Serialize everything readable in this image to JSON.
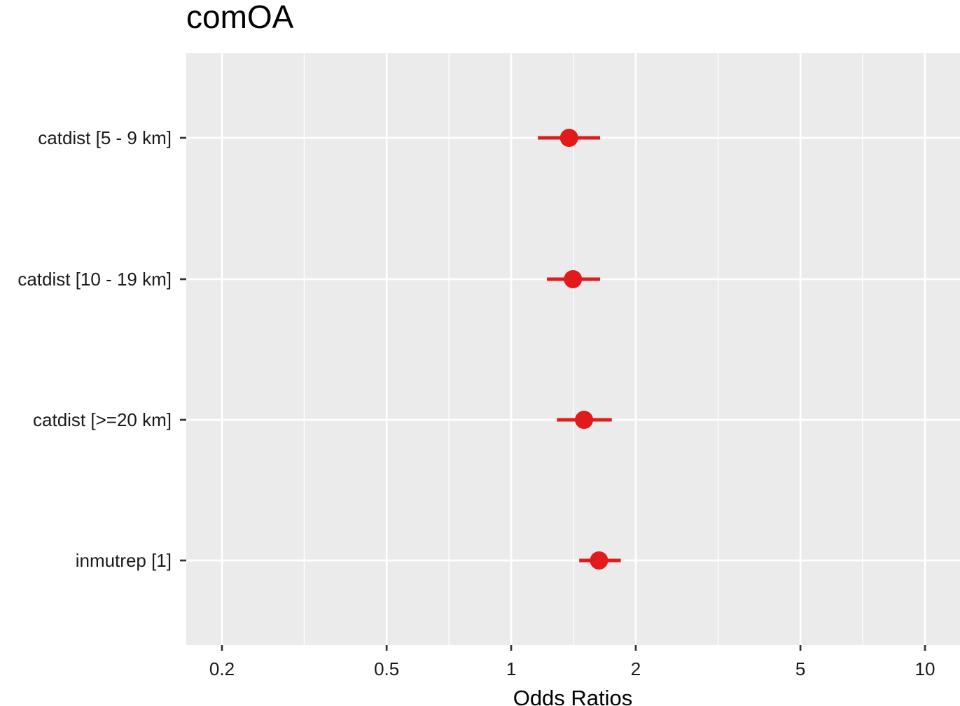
{
  "chart_data": {
    "type": "scatter",
    "title": "comOA",
    "xlabel": "Odds Ratios",
    "ylabel": "",
    "x_scale": "log10",
    "xlim": [
      0.17,
      11.2
    ],
    "x_major_ticks": [
      0.2,
      0.5,
      1,
      2,
      5,
      10
    ],
    "x_tick_labels": [
      "0.2",
      "0.5",
      "1",
      "2",
      "5",
      "10"
    ],
    "x_minor_ticks": [
      0.316,
      0.707,
      1.414,
      3.162,
      7.071
    ],
    "categories": [
      "catdist [5 - 9 km]",
      "catdist [10 - 19 km]",
      "catdist [>=20 km]",
      "inmutrep [1]"
    ],
    "series": [
      {
        "estimates": [
          1.38,
          1.41,
          1.5,
          1.63
        ],
        "ci_low": [
          1.16,
          1.22,
          1.29,
          1.46
        ],
        "ci_high": [
          1.64,
          1.64,
          1.75,
          1.84
        ]
      }
    ],
    "grid": true,
    "legend": "none",
    "colors": {
      "point": "#e31a1c",
      "panel": "#ebebeb",
      "grid": "#ffffff",
      "tick": "#333333"
    }
  }
}
